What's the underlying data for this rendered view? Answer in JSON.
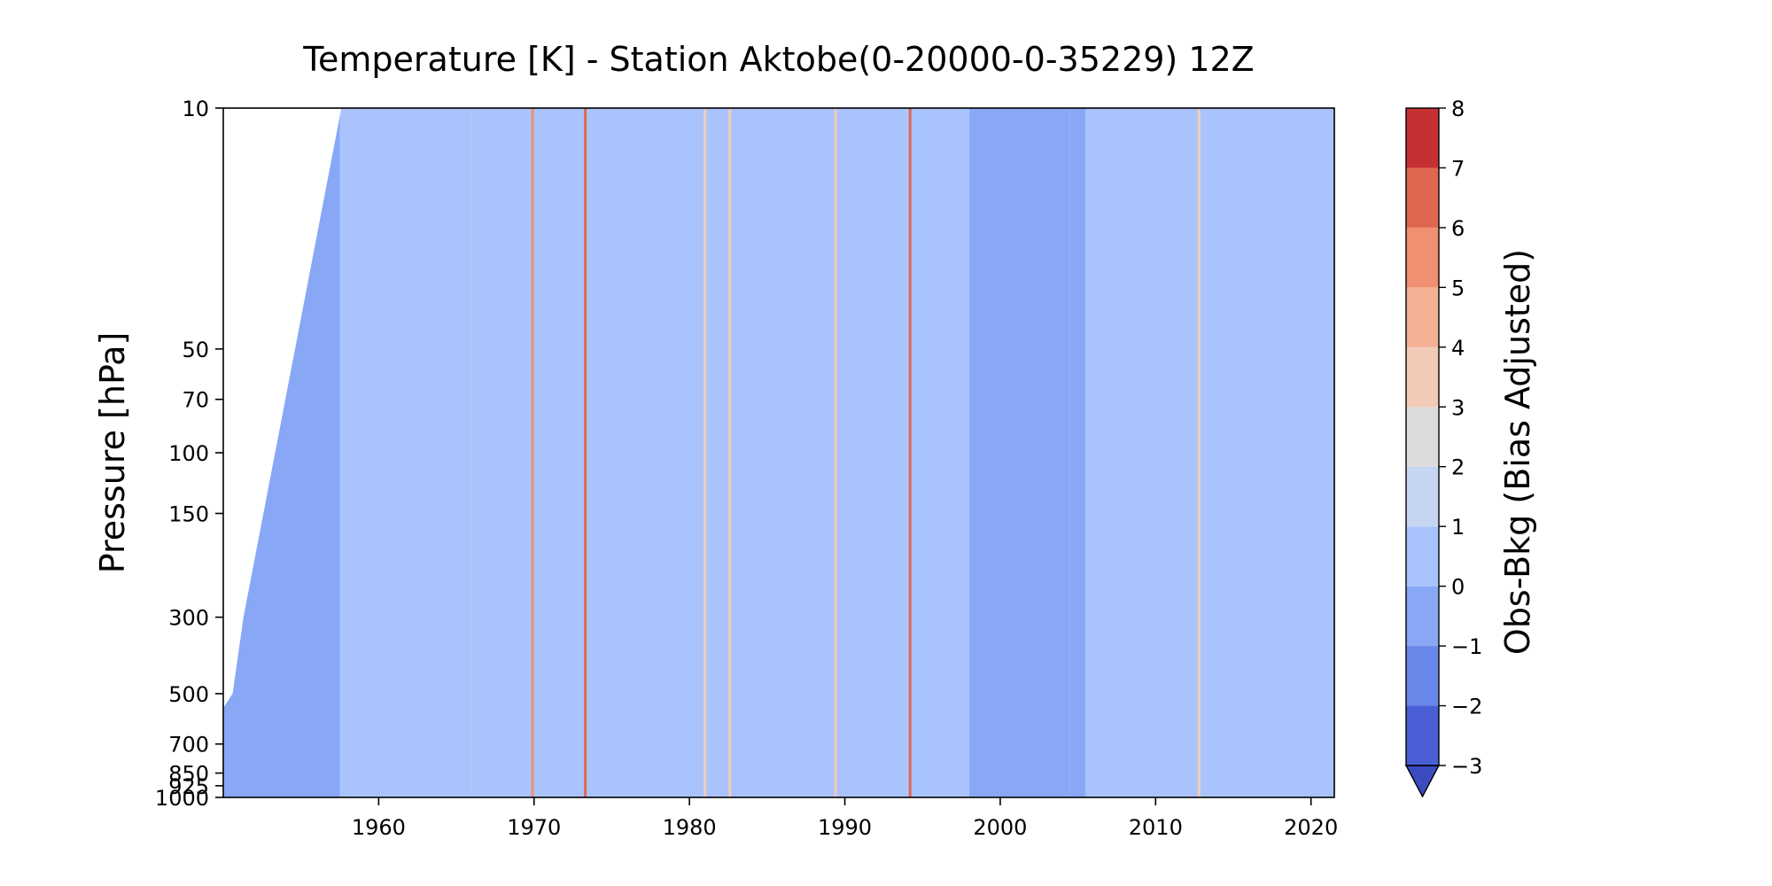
{
  "chart_data": {
    "type": "heatmap",
    "title": "Temperature [K] - Station Aktobe(0-20000-0-35229) 12Z",
    "xlabel": "",
    "ylabel": "Pressure [hPa]",
    "colorbar_label": "Obs-Bkg (Bias Adjusted)",
    "xlim": [
      1950,
      2021.5
    ],
    "ylim": [
      1000,
      10
    ],
    "y_scale": "log",
    "x_ticks": [
      "1960",
      "1970",
      "1980",
      "1990",
      "2000",
      "2010",
      "2020"
    ],
    "y_ticks": [
      "10",
      "50",
      "70",
      "100",
      "150",
      "300",
      "500",
      "700",
      "850",
      "925",
      "1000"
    ],
    "colorbar_ticks": [
      "8",
      "7",
      "6",
      "5",
      "4",
      "3",
      "2",
      "1",
      "0",
      "−1",
      "−2",
      "−3"
    ],
    "colorbar_levels": [
      -3,
      -2,
      -1,
      0,
      1,
      2,
      3,
      4,
      5,
      6,
      7,
      8
    ],
    "colorbar_colors": [
      "#4a5fd6",
      "#6888ea",
      "#88a8f6",
      "#a9c4fc",
      "#c6d6f2",
      "#dcdcdc",
      "#f2cbb7",
      "#f6b094",
      "#f08f71",
      "#e0674f",
      "#c53032"
    ],
    "colorbar_extend": "min",
    "colorbar_under_color": "#3b4cc0",
    "data_start_year": 1950,
    "regions": [
      {
        "x": [
          1950,
          1957.5
        ],
        "value": -0.6
      },
      {
        "x": [
          1957.5,
          1966
        ],
        "value": 0.7
      },
      {
        "x": [
          1966,
          1994
        ],
        "value": 0.5
      },
      {
        "x": [
          1994,
          1998
        ],
        "value": 0.3
      },
      {
        "x": [
          1998,
          2004.5
        ],
        "value": -0.6
      },
      {
        "x": [
          2004.5,
          2005.5
        ],
        "value": -0.5
      },
      {
        "x": [
          2005.5,
          2021.5
        ],
        "value": 0.4
      }
    ],
    "stripes": [
      {
        "year": 1969.9,
        "value": 5.5
      },
      {
        "year": 1973.3,
        "value": 6.5
      },
      {
        "year": 1981.0,
        "value": 3.5
      },
      {
        "year": 1982.6,
        "value": 3.8
      },
      {
        "year": 1989.4,
        "value": 3.6
      },
      {
        "year": 1994.2,
        "value": 6.5
      },
      {
        "year": 2012.8,
        "value": 3.5
      }
    ]
  }
}
